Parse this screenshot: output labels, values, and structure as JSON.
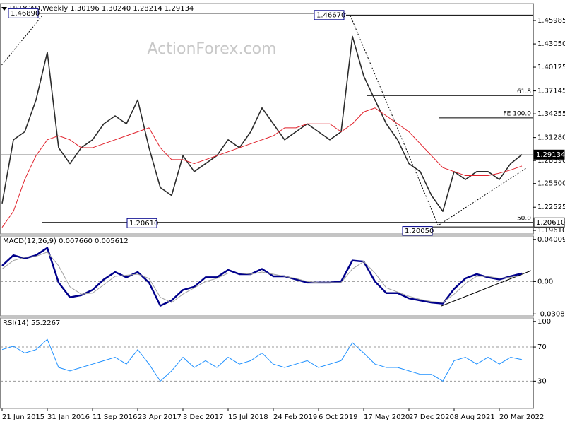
{
  "chart_data": [
    {
      "type": "line",
      "title": "USDCAD,Weekly 1.30196 1.30240 1.28214 1.29134",
      "watermark": "ActionForex.com",
      "categories": [
        "21 Jun 2015",
        null,
        null,
        null,
        "31 Jan 2016",
        null,
        null,
        null,
        "11 Sep 2016",
        null,
        null,
        null,
        "23 Apr 2017",
        null,
        null,
        null,
        "3 Dec 2017",
        null,
        null,
        null,
        "15 Jul 2018",
        null,
        null,
        null,
        "24 Feb 2019",
        null,
        null,
        null,
        "6 Oct 2019",
        null,
        null,
        null,
        "17 May 2020",
        null,
        null,
        null,
        "27 Dec 2020",
        null,
        null,
        null,
        "8 Aug 2021",
        null,
        null,
        null,
        "20 Mar 2022",
        null,
        null
      ],
      "series": [
        {
          "color": "#2b2b2b",
          "values": [
            1.23,
            1.31,
            1.32,
            1.36,
            1.42,
            1.3,
            1.28,
            1.3,
            1.31,
            1.33,
            1.34,
            1.33,
            1.36,
            1.3,
            1.25,
            1.24,
            1.29,
            1.27,
            1.28,
            1.29,
            1.31,
            1.3,
            1.32,
            1.35,
            1.33,
            1.31,
            1.32,
            1.33,
            1.32,
            1.31,
            1.32,
            1.44,
            1.39,
            1.36,
            1.33,
            1.31,
            1.28,
            1.27,
            1.24,
            1.22,
            1.27,
            1.26,
            1.27,
            1.27,
            1.26,
            1.28,
            1.29134
          ]
        },
        {
          "color": "#e0202a",
          "values": [
            1.2,
            1.22,
            1.26,
            1.29,
            1.31,
            1.315,
            1.31,
            1.3,
            1.3,
            1.305,
            1.31,
            1.315,
            1.32,
            1.325,
            1.3,
            1.285,
            1.285,
            1.28,
            1.285,
            1.29,
            1.295,
            1.3,
            1.305,
            1.31,
            1.315,
            1.325,
            1.325,
            1.33,
            1.33,
            1.33,
            1.32,
            1.33,
            1.345,
            1.35,
            1.34,
            1.33,
            1.32,
            1.305,
            1.29,
            1.275,
            1.27,
            1.265,
            1.265,
            1.265,
            1.268,
            1.272,
            1.277
          ]
        }
      ],
      "ylim": [
        1.1917,
        1.4812
      ],
      "yticks": [
        1.45985,
        {
          "value": 1.4305,
          "label": "1.43050"
        },
        1.40125,
        1.37145,
        1.34255,
        {
          "value": 1.3128,
          "label": "1.31280"
        },
        {
          "value": 1.2839,
          "label": "1.28390"
        },
        {
          "value": 1.255,
          "label": "1.25500"
        },
        1.22525,
        {
          "value": 1.1961,
          "label": "1.19610"
        }
      ],
      "annotations": [
        {
          "value": 1.4689,
          "label": "1.46890"
        },
        {
          "value": 1.4667,
          "label": "1.46670"
        },
        {
          "value": 1.2061,
          "label": "1.20610"
        },
        {
          "value": 1.2005,
          "label": "1.20050"
        }
      ],
      "levels": [
        {
          "label": "61.8",
          "value": 1.3655
        },
        {
          "label": "FE 100.0",
          "value": 1.3375
        },
        {
          "label": "50.0",
          "value": 1.2061
        }
      ],
      "price_markers": [
        1.29134,
        {
          "value": 1.2061,
          "label": "1.20610"
        }
      ]
    },
    {
      "type": "line",
      "title": "MACD(12,26,9) 0.007660 0.005612",
      "series": [
        {
          "color": "#00008b",
          "values": [
            0.015,
            0.025,
            0.022,
            0.025,
            0.032,
            -0.001,
            -0.015,
            -0.013,
            -0.008,
            0.002,
            0.009,
            0.004,
            0.009,
            -0.001,
            -0.023,
            -0.018,
            -0.008,
            -0.005,
            0.004,
            0.004,
            0.011,
            0.007,
            0.007,
            0.012,
            0.005,
            0.005,
            0.002,
            -0.001,
            -0.001,
            -0.001,
            0,
            0.02,
            0.019,
            0,
            -0.011,
            -0.011,
            -0.016,
            -0.018,
            -0.02,
            -0.021,
            -0.007,
            0.003,
            0.007,
            0.004,
            0.002,
            0.005,
            0.00766
          ]
        },
        {
          "color": "#a0a0a0",
          "values": [
            0.012,
            0.02,
            0.023,
            0.024,
            0.028,
            0.015,
            -0.005,
            -0.012,
            -0.011,
            -0.003,
            0.005,
            0.006,
            0.007,
            0.003,
            -0.015,
            -0.02,
            -0.012,
            -0.006,
            0,
            0.003,
            0.008,
            0.008,
            0.007,
            0.009,
            0.007,
            0.005,
            0.003,
            0,
            -0.001,
            -0.001,
            -0.001,
            0.012,
            0.019,
            0.008,
            -0.006,
            -0.01,
            -0.014,
            -0.017,
            -0.019,
            -0.02,
            -0.012,
            -0.002,
            0.005,
            0.005,
            0.003,
            0.004,
            0.005612
          ]
        }
      ],
      "ylim": [
        -0.0327,
        0.0433
      ],
      "yticks": [
        0.040094,
        {
          "value": 0,
          "label": "0.00"
        },
        -0.03086
      ]
    },
    {
      "type": "line",
      "title": "RSI(14) 55.2267",
      "series": [
        {
          "color": "#1e90ff",
          "values": [
            67,
            71,
            63,
            67,
            79,
            46,
            42,
            46,
            50,
            54,
            58,
            50,
            67,
            50,
            30,
            42,
            58,
            46,
            54,
            46,
            58,
            50,
            54,
            63,
            50,
            46,
            50,
            54,
            46,
            50,
            54,
            75,
            63,
            50,
            46,
            46,
            42,
            38,
            38,
            30,
            54,
            58,
            50,
            58,
            50,
            58,
            55.2267
          ]
        }
      ],
      "ylim": [
        -2,
        104
      ],
      "yticks": [
        100,
        70,
        30
      ]
    }
  ]
}
